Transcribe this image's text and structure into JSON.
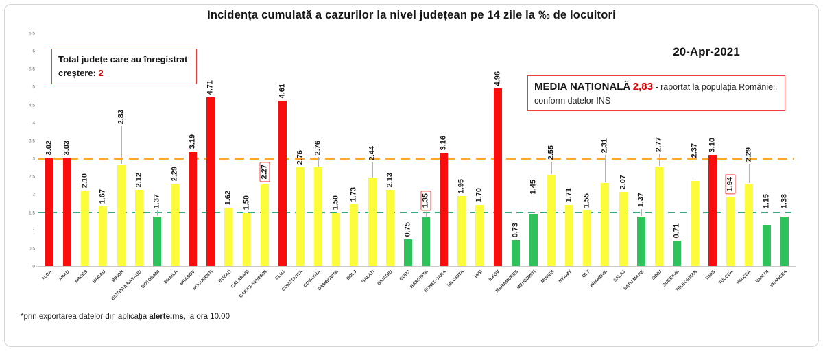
{
  "title": "Incidența cumulată a cazurilor la nivel județean pe 14 zile la ‰ de locuitori",
  "date_label": "20-Apr-2021",
  "growth_box": {
    "line1": "Total județe care au înregistrat",
    "line2_prefix": "creștere: ",
    "count": "2"
  },
  "media_box": {
    "label": "MEDIA NAȚIONALĂ",
    "value": "2,83",
    "dash": "-",
    "rest": "raportat la populația României, conform datelor INS"
  },
  "footnote": {
    "prefix": "*prin exportarea datelor din aplicația ",
    "app": "alerte.ms",
    "suffix": ", la ora 10.00"
  },
  "chart_data": {
    "type": "bar",
    "title": "Incidența cumulată a cazurilor la nivel județean pe 14 zile la ‰ de locuitori",
    "xlabel": "",
    "ylabel": "",
    "ylim": [
      0,
      6.5
    ],
    "ytick_step": 0.5,
    "yticks": [
      "0",
      "0.5",
      "1",
      "1.5",
      "2",
      "2.5",
      "3",
      "3.5",
      "4",
      "4.5",
      "5",
      "5.5",
      "6",
      "6.5"
    ],
    "grid": false,
    "legend": false,
    "thresholds": {
      "upper": 3.0,
      "lower": 1.5
    },
    "colors": {
      "red_bar": "#f90d0d",
      "yellow_bar": "#fcfc3a",
      "green_bar": "#2fc25b",
      "orange_line": "#ffa92b",
      "green_line": "#33a97c",
      "accent_red": "#e80000",
      "box_border_red": "#ff4040"
    },
    "color_rule": "value >= 3 red, value < 1.5 green, else yellow",
    "bars": [
      {
        "name": "ALBA",
        "value": 3.02
      },
      {
        "name": "ARAD",
        "value": 3.03
      },
      {
        "name": "ARGES",
        "value": 2.1
      },
      {
        "name": "BACAU",
        "value": 1.67
      },
      {
        "name": "BIHOR",
        "value": 2.83,
        "leader": 55
      },
      {
        "name": "BISTRITA NASAUD",
        "value": 2.12
      },
      {
        "name": "BOTOSANI",
        "value": 1.37,
        "leader": 8
      },
      {
        "name": "BRAILA",
        "value": 2.29
      },
      {
        "name": "BRASOV",
        "value": 3.19
      },
      {
        "name": "BUCURESTI",
        "value": 4.71
      },
      {
        "name": "BUZAU",
        "value": 1.62
      },
      {
        "name": "CALARASI",
        "value": 1.5
      },
      {
        "name": "CARAS-SEVERIN",
        "value": 2.27,
        "boxed": true
      },
      {
        "name": "CLUJ",
        "value": 4.61
      },
      {
        "name": "CONSTANTA",
        "value": 2.76
      },
      {
        "name": "COVASNA",
        "value": 2.76,
        "leader": 14
      },
      {
        "name": "DAMBOVITA",
        "value": 1.5
      },
      {
        "name": "DOLJ",
        "value": 1.73
      },
      {
        "name": "GALATI",
        "value": 2.44,
        "leader": 22
      },
      {
        "name": "GIURGIU",
        "value": 2.13
      },
      {
        "name": "GORJ",
        "value": 0.75
      },
      {
        "name": "HARGHITA",
        "value": 1.35,
        "boxed": true,
        "leader": 6
      },
      {
        "name": "HUNEDOARA",
        "value": 3.16
      },
      {
        "name": "IALOMITA",
        "value": 1.95
      },
      {
        "name": "IASI",
        "value": 1.7
      },
      {
        "name": "ILFOV",
        "value": 4.96
      },
      {
        "name": "MARAMURES",
        "value": 0.73
      },
      {
        "name": "MEHEDINTI",
        "value": 1.45,
        "leader": 25
      },
      {
        "name": "MURES",
        "value": 2.55,
        "leader": 18
      },
      {
        "name": "NEAMT",
        "value": 1.71
      },
      {
        "name": "OLT",
        "value": 1.55
      },
      {
        "name": "PRAHOVA",
        "value": 2.31,
        "leader": 40
      },
      {
        "name": "SALAJ",
        "value": 2.07
      },
      {
        "name": "SATU MARE",
        "value": 1.37,
        "leader": 10
      },
      {
        "name": "SIBIU",
        "value": 2.77,
        "leader": 18
      },
      {
        "name": "SUCEAVA",
        "value": 0.71
      },
      {
        "name": "TELEORMAN",
        "value": 2.37,
        "leader": 30
      },
      {
        "name": "TIMIS",
        "value": 3.1
      },
      {
        "name": "TULCEA",
        "value": 1.94,
        "boxed": true
      },
      {
        "name": "VALCEA",
        "value": 2.29,
        "leader": 28
      },
      {
        "name": "VASLUI",
        "value": 1.15,
        "leader": 20
      },
      {
        "name": "VRANCEA",
        "value": 1.38,
        "leader": 8
      }
    ]
  }
}
